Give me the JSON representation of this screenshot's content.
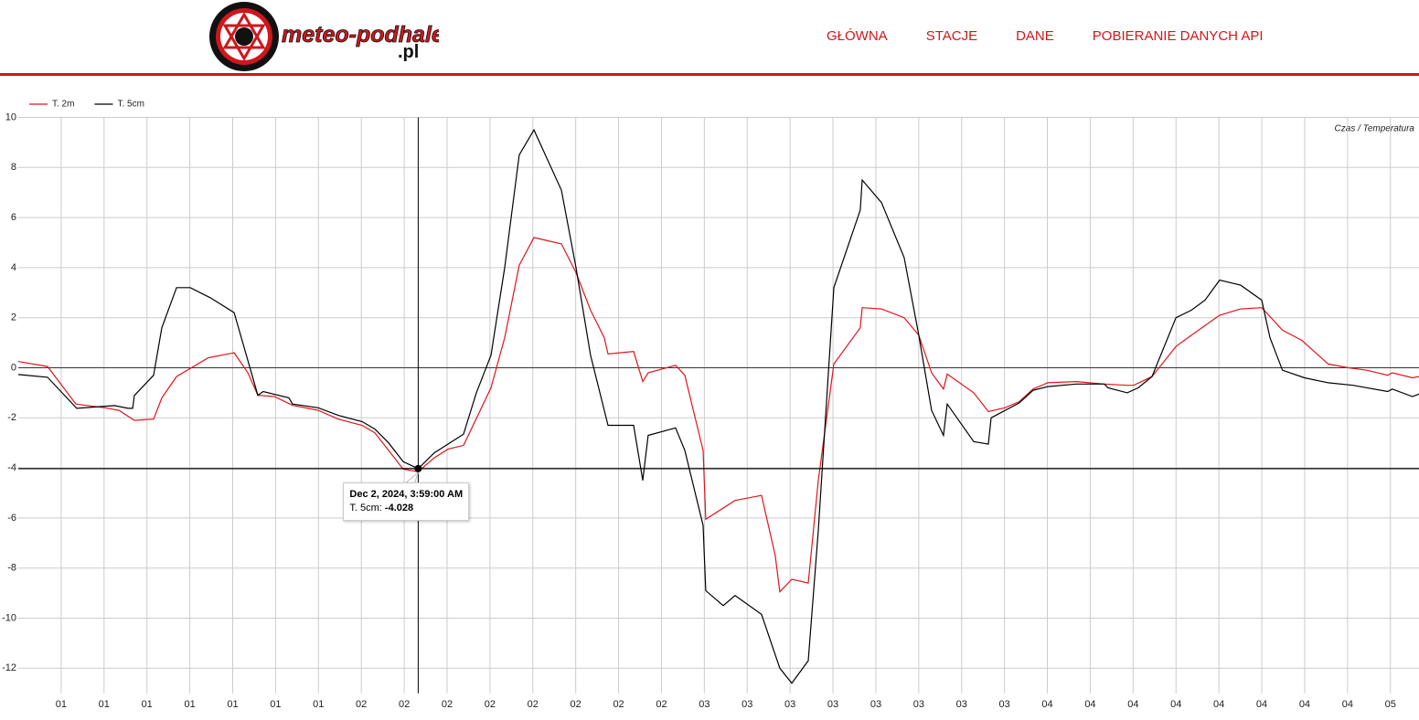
{
  "header": {
    "logo_text": "meteo-podhale",
    "logo_suffix": ".pl",
    "nav": [
      "GŁÓWNA",
      "STACJE",
      "DANE",
      "POBIERANIE DANYCH API"
    ]
  },
  "chart_data": {
    "type": "line",
    "axis_title": "Czas / Temperatura",
    "legend": "top-left",
    "grid": true,
    "xlim": [
      0,
      98
    ],
    "ylim": [
      -13,
      10
    ],
    "yticks": [
      -12,
      -10,
      -8,
      -6,
      -4,
      -2,
      0,
      2,
      4,
      6,
      8,
      10
    ],
    "xticks": [
      {
        "value": 3,
        "label": "01"
      },
      {
        "value": 6,
        "label": "01"
      },
      {
        "value": 9,
        "label": "01"
      },
      {
        "value": 12,
        "label": "01"
      },
      {
        "value": 15,
        "label": "01"
      },
      {
        "value": 18,
        "label": "01"
      },
      {
        "value": 21,
        "label": "01"
      },
      {
        "value": 24,
        "label": "02"
      },
      {
        "value": 27,
        "label": "02"
      },
      {
        "value": 30,
        "label": "02"
      },
      {
        "value": 33,
        "label": "02"
      },
      {
        "value": 36,
        "label": "02"
      },
      {
        "value": 39,
        "label": "02"
      },
      {
        "value": 42,
        "label": "02"
      },
      {
        "value": 45,
        "label": "02"
      },
      {
        "value": 48,
        "label": "03"
      },
      {
        "value": 51,
        "label": "03"
      },
      {
        "value": 54,
        "label": "03"
      },
      {
        "value": 57,
        "label": "03"
      },
      {
        "value": 60,
        "label": "03"
      },
      {
        "value": 63,
        "label": "03"
      },
      {
        "value": 66,
        "label": "03"
      },
      {
        "value": 69,
        "label": "03"
      },
      {
        "value": 72,
        "label": "04"
      },
      {
        "value": 75,
        "label": "04"
      },
      {
        "value": 78,
        "label": "04"
      },
      {
        "value": 81,
        "label": "04"
      },
      {
        "value": 84,
        "label": "04"
      },
      {
        "value": 87,
        "label": "04"
      },
      {
        "value": 90,
        "label": "04"
      },
      {
        "value": 93,
        "label": "04"
      },
      {
        "value": 96,
        "label": "05"
      }
    ],
    "series": [
      {
        "name": "T. 2m",
        "color": "#e0151b",
        "x": [
          0,
          2.05,
          4.03,
          6.08,
          7.04,
          8.12,
          9.47,
          10.04,
          11.07,
          13.3,
          15.1,
          16.06,
          16.76,
          17.91,
          19.19,
          20.98,
          22.39,
          24.05,
          24.95,
          25.91,
          26.93,
          27.98,
          29.1,
          30.06,
          31.15,
          33.07,
          34.03,
          35.05,
          36.08,
          38.0,
          39.02,
          40.04,
          41.0,
          41.26,
          43.05,
          43.69,
          44.07,
          45.99,
          46.63,
          47.91,
          48.1,
          50.15,
          52.0,
          52.96,
          53.28,
          54.12,
          55.27,
          55.97,
          57.06,
          58.91,
          59.04,
          60.39,
          61.98,
          63.0,
          63.9,
          64.73,
          64.99,
          66.85,
          67.87,
          69.02,
          70.04,
          71.0,
          72.03,
          74.01,
          75.99,
          77.59,
          78.04,
          79.32,
          81.0,
          82.07,
          84.05,
          85.52,
          87.0,
          88.45,
          89.79,
          91.65,
          93.06,
          94.35,
          95.81,
          96.13,
          97.54,
          98.0
        ],
        "values": [
          0.25,
          0.05,
          -1.45,
          -1.6,
          -1.7,
          -2.1,
          -2.05,
          -1.2,
          -0.35,
          0.4,
          0.6,
          -0.2,
          -1.1,
          -1.15,
          -1.5,
          -1.7,
          -2.05,
          -2.3,
          -2.6,
          -3.3,
          -4.05,
          -4.15,
          -3.6,
          -3.25,
          -3.1,
          -0.8,
          1.2,
          4.1,
          5.2,
          4.95,
          3.8,
          2.3,
          1.2,
          0.55,
          0.65,
          -0.55,
          -0.2,
          0.1,
          -0.3,
          -3.3,
          -6.05,
          -5.3,
          -5.1,
          -7.5,
          -8.95,
          -8.45,
          -8.6,
          -4.5,
          0.15,
          1.6,
          2.4,
          2.35,
          2.0,
          1.3,
          -0.2,
          -0.85,
          -0.25,
          -1.0,
          -1.75,
          -1.6,
          -1.35,
          -0.85,
          -0.6,
          -0.55,
          -0.65,
          -0.7,
          -0.7,
          -0.35,
          0.85,
          1.3,
          2.1,
          2.35,
          2.4,
          1.5,
          1.1,
          0.15,
          0.0,
          -0.1,
          -0.3,
          -0.2,
          -0.4,
          -0.35
        ]
      },
      {
        "name": "T. 5cm",
        "color": "#000000",
        "x": [
          0,
          2.05,
          4.09,
          6.72,
          7.68,
          8.0,
          8.12,
          9.47,
          10.04,
          11.07,
          12.03,
          13.43,
          15.1,
          16.76,
          17.14,
          18.93,
          19.19,
          20.98,
          22.39,
          24.05,
          24.95,
          25.91,
          26.93,
          27.98,
          29.1,
          31.15,
          32.05,
          33.07,
          34.03,
          35.05,
          36.08,
          38.0,
          39.02,
          40.04,
          41.26,
          43.05,
          43.69,
          44.07,
          45.99,
          46.63,
          47.91,
          48.1,
          49.32,
          50.15,
          52.0,
          53.28,
          54.12,
          55.27,
          55.97,
          57.06,
          58.91,
          59.04,
          60.39,
          61.98,
          63.0,
          63.9,
          64.73,
          64.99,
          66.85,
          67.87,
          68.06,
          70.04,
          71.0,
          72.03,
          74.01,
          75.99,
          76.25,
          77.59,
          78.36,
          79.32,
          81.0,
          82.07,
          83.03,
          84.05,
          85.52,
          87.0,
          87.57,
          88.45,
          89.99,
          91.65,
          93.38,
          95.81,
          96.13,
          97.54,
          98.0
        ],
        "values": [
          -0.27,
          -0.38,
          -1.62,
          -1.51,
          -1.62,
          -1.62,
          -1.11,
          -0.3,
          1.6,
          3.2,
          3.2,
          2.8,
          2.2,
          -1.1,
          -0.95,
          -1.2,
          -1.45,
          -1.6,
          -1.9,
          -2.15,
          -2.45,
          -3.0,
          -3.75,
          -4.028,
          -3.4,
          -2.65,
          -1.0,
          0.5,
          4.0,
          8.5,
          9.5,
          7.1,
          4.0,
          0.5,
          -2.3,
          -2.3,
          -4.5,
          -2.7,
          -2.4,
          -3.3,
          -6.3,
          -8.9,
          -9.5,
          -9.1,
          -9.85,
          -12.0,
          -12.6,
          -11.7,
          -6.5,
          3.2,
          6.3,
          7.5,
          6.6,
          4.4,
          1.3,
          -1.7,
          -2.7,
          -1.45,
          -2.95,
          -3.05,
          -2.0,
          -1.4,
          -0.9,
          -0.75,
          -0.65,
          -0.65,
          -0.8,
          -1.0,
          -0.8,
          -0.35,
          2.0,
          2.3,
          2.7,
          3.5,
          3.3,
          2.7,
          1.2,
          -0.1,
          -0.4,
          -0.6,
          -0.7,
          -0.95,
          -0.85,
          -1.15,
          -1.05
        ]
      }
    ],
    "tooltip": {
      "x": 27.98,
      "title": "Dec 2, 2024, 3:59:00 AM",
      "label": "T. 5cm:",
      "value": -4.028
    }
  }
}
